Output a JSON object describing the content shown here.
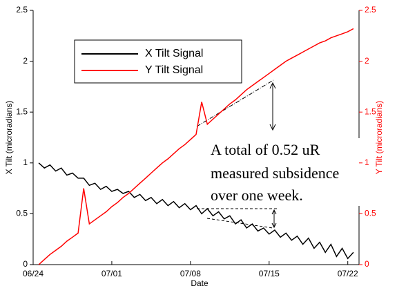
{
  "chart_data": {
    "type": "line",
    "xlabel": "Date",
    "ylabel": "X Tilt (microradians)",
    "y2label": "Y Tilt (microradians)",
    "x": [
      0.5,
      1,
      1.5,
      2,
      2.5,
      3,
      3.5,
      4,
      4.5,
      5,
      5.5,
      6,
      6.5,
      7,
      7.5,
      8,
      8.5,
      9,
      9.5,
      10,
      10.5,
      11,
      11.5,
      12,
      12.5,
      13,
      13.5,
      14,
      14.5,
      15,
      15.5,
      16,
      16.5,
      17,
      17.5,
      18,
      18.5,
      19,
      19.5,
      20,
      20.5,
      21,
      21.5,
      22,
      22.5,
      23,
      23.5,
      24,
      24.5,
      25,
      25.5,
      26,
      26.5,
      27,
      27.5,
      28,
      28.5
    ],
    "series": [
      {
        "name": "X Tilt Signal",
        "color": "#000000",
        "values": [
          1.0,
          0.95,
          0.98,
          0.92,
          0.95,
          0.88,
          0.9,
          0.85,
          0.85,
          0.78,
          0.8,
          0.74,
          0.77,
          0.72,
          0.74,
          0.7,
          0.72,
          0.66,
          0.69,
          0.63,
          0.66,
          0.6,
          0.64,
          0.58,
          0.62,
          0.56,
          0.6,
          0.54,
          0.58,
          0.5,
          0.55,
          0.48,
          0.52,
          0.45,
          0.48,
          0.4,
          0.44,
          0.36,
          0.4,
          0.33,
          0.36,
          0.3,
          0.34,
          0.27,
          0.31,
          0.24,
          0.28,
          0.2,
          0.26,
          0.16,
          0.22,
          0.12,
          0.2,
          0.08,
          0.16,
          0.06,
          0.12
        ]
      },
      {
        "name": "Y Tilt Signal",
        "color": "#ff0000",
        "axis": "y2",
        "values": [
          0,
          0.05,
          0.1,
          0.14,
          0.18,
          0.23,
          0.27,
          0.31,
          0.75,
          0.4,
          0.44,
          0.48,
          0.52,
          0.57,
          0.61,
          0.66,
          0.7,
          0.75,
          0.8,
          0.85,
          0.9,
          0.95,
          1.0,
          1.04,
          1.09,
          1.14,
          1.18,
          1.23,
          1.28,
          1.6,
          1.38,
          1.43,
          1.48,
          1.53,
          1.58,
          1.62,
          1.67,
          1.72,
          1.76,
          1.8,
          1.84,
          1.88,
          1.92,
          1.96,
          2.0,
          2.03,
          2.06,
          2.09,
          2.12,
          2.15,
          2.18,
          2.2,
          2.23,
          2.25,
          2.27,
          2.29,
          2.32
        ]
      }
    ],
    "xlim": [
      0,
      29
    ],
    "xticks": [
      {
        "value": 0,
        "label": "06/24"
      },
      {
        "value": 7,
        "label": "07/01"
      },
      {
        "value": 14,
        "label": "07/08"
      },
      {
        "value": 21,
        "label": "07/15"
      },
      {
        "value": 28,
        "label": "07/22"
      }
    ],
    "ylim": [
      0,
      2.5
    ],
    "yticks": [
      0,
      0.5,
      1,
      1.5,
      2,
      2.5
    ],
    "y2lim": [
      0,
      2.5
    ],
    "y2ticks": [
      0,
      0.5,
      1,
      1.5,
      2,
      2.5
    ],
    "y2color": "#ff0000",
    "annotations": [
      "A total of 0.52 uR",
      "measured subsidence",
      "over one week."
    ]
  }
}
